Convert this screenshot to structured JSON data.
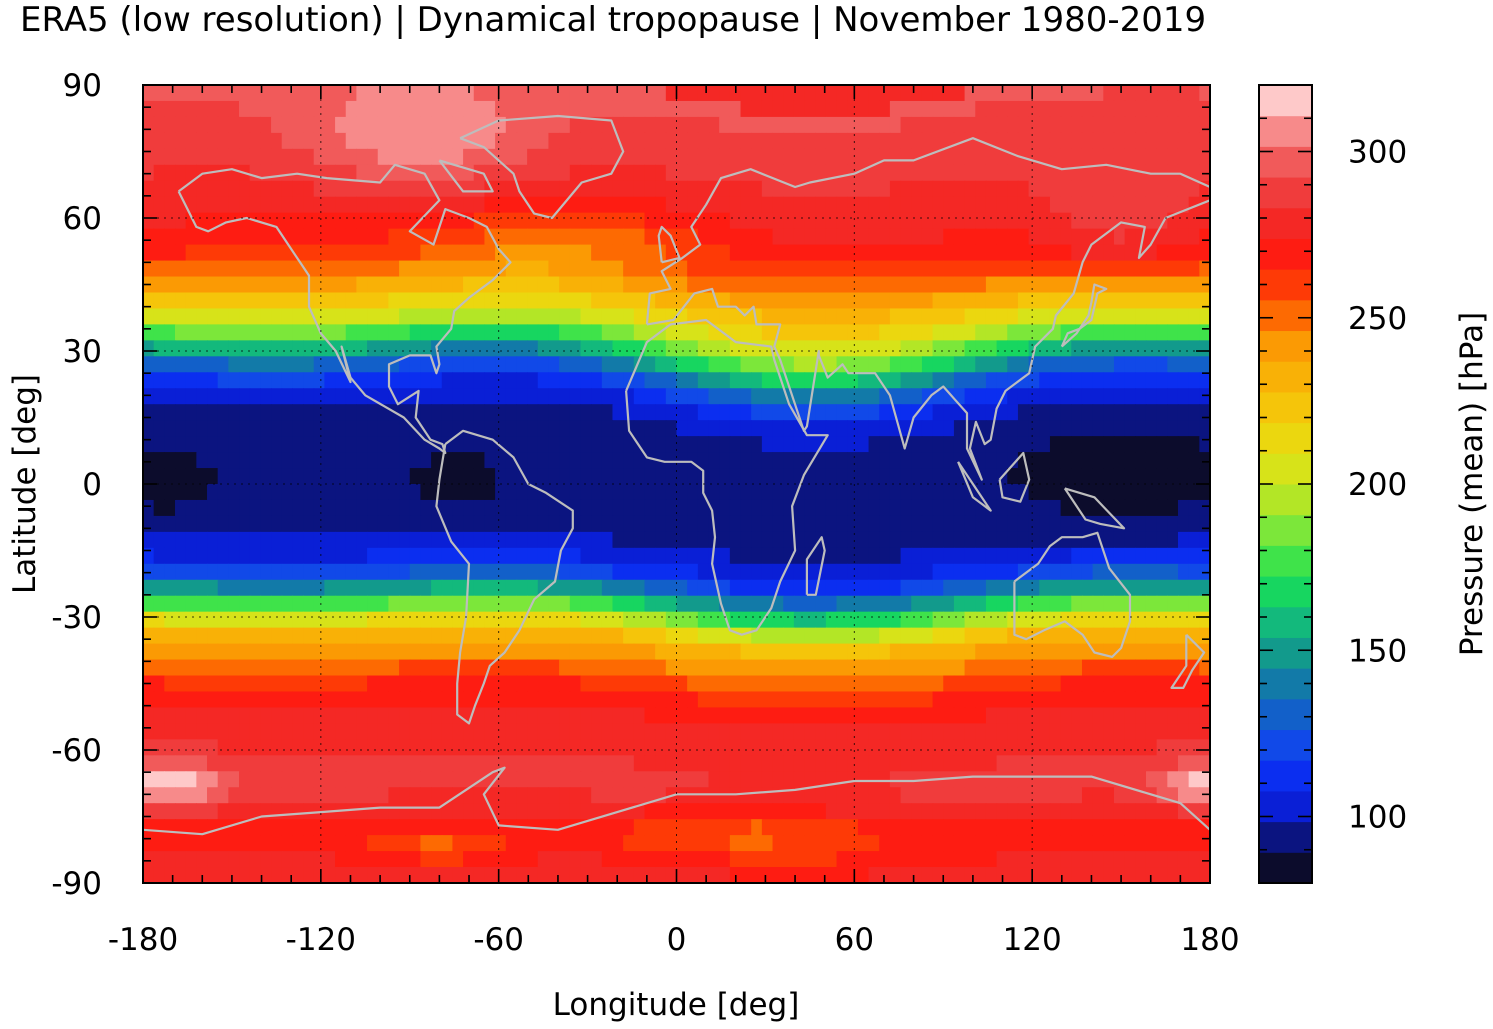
{
  "title": "ERA5 (low resolution) | Dynamical tropopause | November 1980-2019",
  "map": {
    "xlabel": "Longitude [deg]",
    "ylabel": "Latitude [deg]",
    "xticks": [
      "-180",
      "-120",
      "-60",
      "0",
      "60",
      "120",
      "180"
    ],
    "yticks": [
      "90",
      "60",
      "30",
      "0",
      "-30",
      "-60",
      "-90"
    ],
    "xlim": [
      -180,
      180
    ],
    "ylim": [
      -90,
      90
    ],
    "grid": true,
    "coastline_color": "#bdbdbd"
  },
  "colorbar": {
    "label": "Pressure (mean) [hPa]",
    "ticks": [
      "300",
      "250",
      "200",
      "150",
      "100"
    ],
    "range": [
      80,
      320
    ],
    "colors": [
      "#0c0c2c",
      "#0b1480",
      "#0a1fd6",
      "#0b2ef0",
      "#1149e8",
      "#1260c9",
      "#127aa8",
      "#129a8c",
      "#13b97c",
      "#17d660",
      "#3fe34a",
      "#7ce73a",
      "#b3e626",
      "#d7e319",
      "#ebd70f",
      "#f5c50a",
      "#f9b106",
      "#fb9a04",
      "#fd6a02",
      "#fe3a06",
      "#fe1c12",
      "#f42825",
      "#f03c3c",
      "#f15a5a",
      "#f78a8a",
      "#fec9c9"
    ]
  },
  "chart_data": {
    "type": "heatmap",
    "title": "ERA5 (low resolution) | Dynamical tropopause | November 1980-2019",
    "xlabel": "Longitude [deg]",
    "ylabel": "Latitude [deg]",
    "xlim": [
      -180,
      180
    ],
    "ylim": [
      -90,
      90
    ],
    "colorbar_label": "Pressure (mean) [hPa]",
    "colorbar_range": [
      80,
      320
    ],
    "zonal_mean_profile": {
      "lat": [
        90,
        75,
        60,
        50,
        45,
        40,
        35,
        30,
        25,
        20,
        15,
        10,
        5,
        0,
        -5,
        -10,
        -15,
        -20,
        -25,
        -30,
        -35,
        -40,
        -45,
        -50,
        -55,
        -60,
        -70,
        -80,
        -90
      ],
      "pressure_hPa": [
        295,
        285,
        275,
        262,
        245,
        225,
        200,
        165,
        130,
        108,
        98,
        95,
        93,
        92,
        94,
        96,
        100,
        115,
        150,
        195,
        232,
        245,
        262,
        272,
        278,
        282,
        286,
        270,
        280
      ]
    }
  }
}
